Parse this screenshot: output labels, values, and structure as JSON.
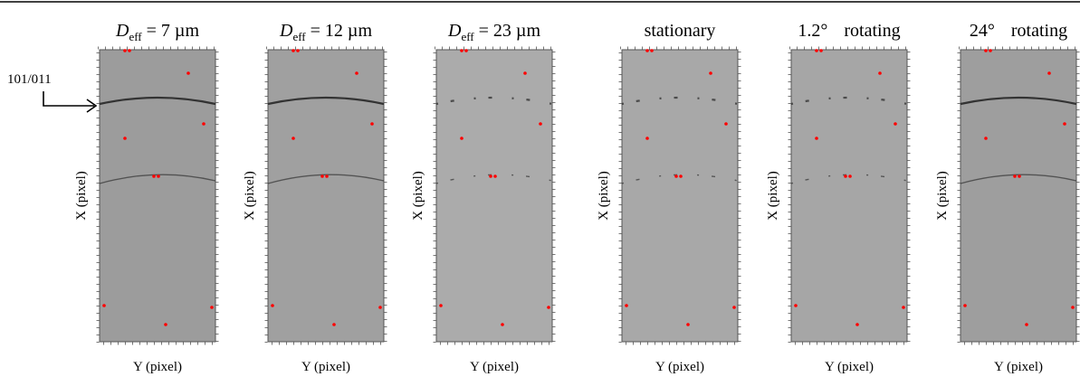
{
  "annotation": "101/011",
  "panels": [
    {
      "title": {
        "symbol": "D",
        "subscript": "eff",
        "text": "= 7 µm"
      },
      "x_label": "X (pixel)",
      "y_label": "Y (pixel)"
    },
    {
      "title": {
        "symbol": "D",
        "subscript": "eff",
        "text": "= 12 µm"
      },
      "x_label": "X (pixel)",
      "y_label": "Y (pixel)"
    },
    {
      "title": {
        "symbol": "D",
        "subscript": "eff",
        "text": "= 23 µm"
      },
      "x_label": "X (pixel)",
      "y_label": "Y (pixel)"
    },
    {
      "title": {
        "text": "stationary"
      },
      "x_label": "X (pixel)",
      "y_label": "Y (pixel)"
    },
    {
      "title": {
        "angle": "1.2°",
        "text": "rotating"
      },
      "x_label": "X (pixel)",
      "y_label": "Y (pixel)"
    },
    {
      "title": {
        "angle": "24°",
        "text": "rotating"
      },
      "x_label": "X (pixel)",
      "y_label": "Y (pixel)"
    }
  ]
}
